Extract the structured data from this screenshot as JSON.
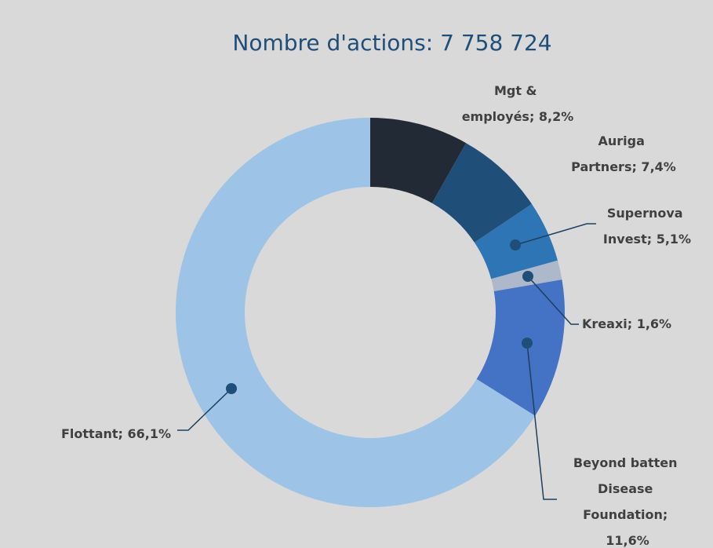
{
  "chart_data": {
    "type": "donut",
    "title": "Nombre d'actions: 7 758 724",
    "categories": [
      "Mgt & employés",
      "Auriga Partners",
      "Supernova Invest",
      "Kreaxi",
      "Beyond batten Disease Foundation",
      "Flottant"
    ],
    "values": [
      8.2,
      7.4,
      5.1,
      1.6,
      11.6,
      66.1
    ],
    "value_labels": [
      "Mgt & employés; 8,2%",
      "Auriga Partners; 7,4%",
      "Supernova Invest; 5,1%",
      "Kreaxi; 1,6%",
      "Beyond batten Disease Foundation; 11,6%",
      "Flottant; 66,1%"
    ],
    "colors": [
      "#222a35",
      "#1f4e79",
      "#2e75b6",
      "#adb9ca",
      "#4472c4",
      "#9dc3e6"
    ]
  }
}
